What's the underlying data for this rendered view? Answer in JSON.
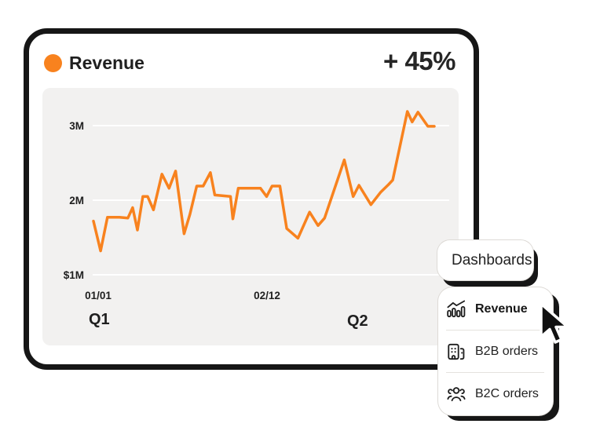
{
  "colors": {
    "accent": "#F8821E",
    "ink": "#1F1F1F",
    "card_border": "#161616",
    "chart_bg": "#F2F1F0",
    "grid": "#FFFFFF",
    "divider": "#E5E2DE"
  },
  "card": {
    "title": "Revenue",
    "delta": "+ 45%"
  },
  "chart_data": {
    "type": "line",
    "title": "Revenue",
    "ylim": [
      0,
      3.5
    ],
    "grid": true,
    "legend_position": "none",
    "yticks": [
      {
        "label": "3M",
        "value": 3
      },
      {
        "label": "2M",
        "value": 2
      },
      {
        "label": "$1M",
        "value": 1
      }
    ],
    "xticks": [
      {
        "label": "01/01",
        "pos_pct": 1.4
      },
      {
        "label": "02/12",
        "pos_pct": 50.9
      }
    ],
    "periods": [
      {
        "label": "Q1",
        "pos_pct": 1.2
      },
      {
        "label": "Q2",
        "pos_pct": 77.5
      }
    ],
    "series": [
      {
        "name": "Revenue",
        "color": "#F8821E",
        "points": [
          [
            0,
            1.72
          ],
          [
            2.1,
            1.32
          ],
          [
            4.1,
            1.77
          ],
          [
            7.6,
            1.77
          ],
          [
            10.1,
            1.76
          ],
          [
            11.5,
            1.9
          ],
          [
            12.9,
            1.6
          ],
          [
            14.5,
            2.05
          ],
          [
            15.9,
            2.05
          ],
          [
            17.6,
            1.87
          ],
          [
            20.1,
            2.35
          ],
          [
            22.2,
            2.16
          ],
          [
            24.1,
            2.39
          ],
          [
            26.6,
            1.55
          ],
          [
            28.3,
            1.81
          ],
          [
            30.3,
            2.19
          ],
          [
            32.2,
            2.19
          ],
          [
            34.3,
            2.37
          ],
          [
            35.6,
            2.07
          ],
          [
            40.2,
            2.05
          ],
          [
            40.9,
            1.75
          ],
          [
            42.5,
            2.16
          ],
          [
            49.0,
            2.16
          ],
          [
            50.8,
            2.05
          ],
          [
            52.4,
            2.19
          ],
          [
            54.7,
            2.19
          ],
          [
            56.7,
            1.62
          ],
          [
            60.0,
            1.49
          ],
          [
            63.4,
            1.84
          ],
          [
            65.9,
            1.66
          ],
          [
            67.8,
            1.76
          ],
          [
            73.6,
            2.54
          ],
          [
            76.2,
            2.05
          ],
          [
            77.9,
            2.2
          ],
          [
            81.4,
            1.94
          ],
          [
            84.3,
            2.11
          ],
          [
            86.6,
            2.21
          ],
          [
            87.8,
            2.27
          ],
          [
            92.1,
            3.19
          ],
          [
            93.5,
            3.05
          ],
          [
            95.2,
            3.18
          ],
          [
            98.1,
            2.99
          ],
          [
            100,
            2.99
          ]
        ]
      }
    ]
  },
  "dashboards_button": {
    "label": "Dashboards"
  },
  "menu": {
    "items": [
      {
        "label": "Revenue",
        "icon": "bar-chart-trend-icon",
        "active": true
      },
      {
        "label": "B2B orders",
        "icon": "building-icon",
        "active": false
      },
      {
        "label": "B2C orders",
        "icon": "users-group-icon",
        "active": false
      }
    ]
  },
  "cursor_icon": "pointer-arrow"
}
